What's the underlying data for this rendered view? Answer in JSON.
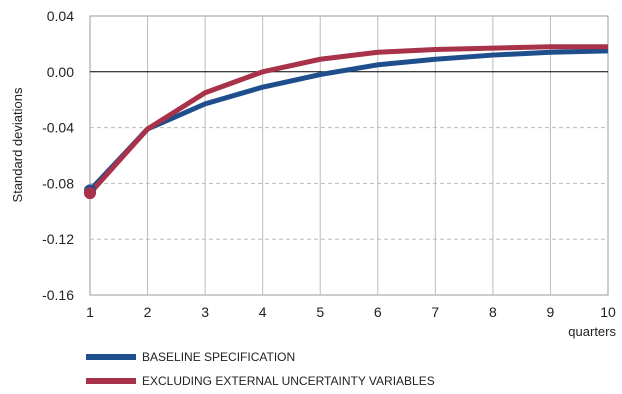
{
  "chart_data": {
    "type": "line",
    "xlabel": "quarters",
    "ylabel": "Standard deviations",
    "x": [
      1,
      2,
      3,
      4,
      5,
      6,
      7,
      8,
      9,
      10
    ],
    "xlim": [
      1,
      10
    ],
    "ylim": [
      -0.16,
      0.04
    ],
    "yticks": [
      "0.04",
      "0.00",
      "-0.04",
      "-0.08",
      "-0.12",
      "-0.16"
    ],
    "grid": true,
    "legend_position": "bottom",
    "series": [
      {
        "name": "BASELINE SPECIFICATION",
        "color": "#1f4e8c",
        "values": [
          -0.085,
          -0.041,
          -0.023,
          -0.011,
          -0.002,
          0.005,
          0.009,
          0.012,
          0.014,
          0.015
        ]
      },
      {
        "name": "EXCLUDING EXTERNAL UNCERTAINTY VARIABLES",
        "color": "#a8324a",
        "values": [
          -0.087,
          -0.041,
          -0.015,
          0.0,
          0.009,
          0.014,
          0.016,
          0.017,
          0.018,
          0.018
        ]
      }
    ]
  }
}
